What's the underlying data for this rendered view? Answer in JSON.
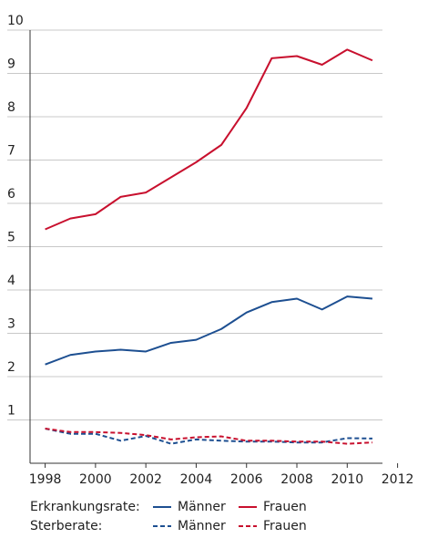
{
  "chart_data": {
    "type": "line",
    "x": [
      1998,
      1999,
      2000,
      2001,
      2002,
      2003,
      2004,
      2005,
      2006,
      2007,
      2008,
      2009,
      2010,
      2011
    ],
    "xlim": [
      1997.4,
      2011.4
    ],
    "xticks": [
      1998,
      2000,
      2002,
      2004,
      2006,
      2008,
      2010,
      2012
    ],
    "ylim": [
      0,
      10
    ],
    "yticks": [
      1,
      2,
      3,
      4,
      5,
      6,
      7,
      8,
      9,
      10
    ],
    "grid": true,
    "legend_groups": [
      "Erkrankungsrate:",
      "Sterberate:"
    ],
    "series": [
      {
        "name": "Männer",
        "group": 0,
        "dashed": false,
        "color": "#1d4f91",
        "values": [
          2.28,
          2.5,
          2.58,
          2.62,
          2.58,
          2.78,
          2.85,
          3.1,
          3.48,
          3.72,
          3.8,
          3.55,
          3.85,
          3.8
        ]
      },
      {
        "name": "Frauen",
        "group": 0,
        "dashed": false,
        "color": "#c8102e",
        "values": [
          5.4,
          5.65,
          5.75,
          6.15,
          6.25,
          6.6,
          6.95,
          7.35,
          8.2,
          9.35,
          9.4,
          9.2,
          9.55,
          9.3
        ]
      },
      {
        "name": "Männer",
        "group": 1,
        "dashed": true,
        "color": "#1d4f91",
        "values": [
          0.8,
          0.68,
          0.68,
          0.52,
          0.63,
          0.45,
          0.55,
          0.52,
          0.5,
          0.5,
          0.48,
          0.48,
          0.58,
          0.57
        ]
      },
      {
        "name": "Frauen",
        "group": 1,
        "dashed": true,
        "color": "#c8102e",
        "values": [
          0.8,
          0.72,
          0.72,
          0.7,
          0.65,
          0.55,
          0.6,
          0.62,
          0.52,
          0.52,
          0.5,
          0.5,
          0.45,
          0.48
        ]
      }
    ]
  }
}
